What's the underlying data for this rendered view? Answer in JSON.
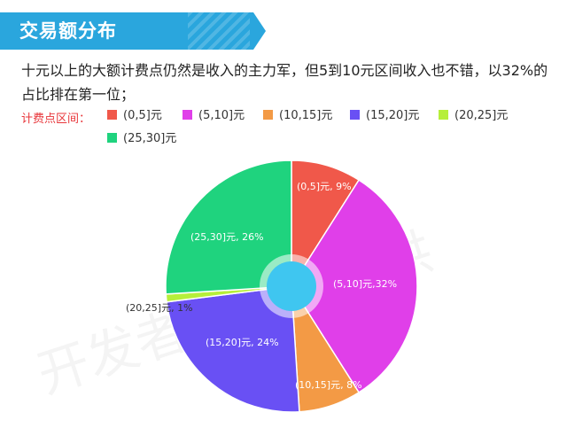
{
  "header": {
    "title": "交易额分布"
  },
  "description": "十元以上的大额计费点仍然是收入的主力军，但5到10元区间收入也不错，以32%的占比排在第一位；",
  "legend": {
    "title": "计费点区间："
  },
  "watermark": "开发者伍六部提供",
  "chart_data": {
    "type": "pie",
    "title": "",
    "categories": [
      "(0,5]元",
      "(5,10]元",
      "(10,15]元",
      "(15,20]元",
      "(20,25]元",
      "(25,30]元"
    ],
    "values": [
      9,
      32,
      8,
      24,
      1,
      26
    ],
    "labels": [
      "(0,5]元, 9%",
      "(5,10]元,32%",
      "(10,15]元, 8%",
      "(15,20]元, 24%",
      "(20,25]元, 1%",
      "(25,30]元, 26%"
    ],
    "colors": [
      "#f0584a",
      "#e03fe9",
      "#f39a45",
      "#6950f4",
      "#b6ef3a",
      "#1fd37e"
    ],
    "center_color": "#3fc6f0",
    "legend_position": "top-left",
    "start_angle": "12 o'clock, clockwise"
  }
}
